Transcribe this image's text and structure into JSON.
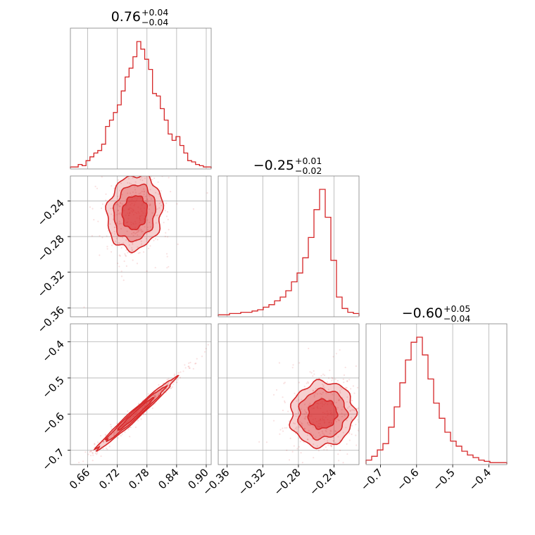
{
  "chart_data": {
    "type": "corner",
    "color": "#d62728",
    "grid": true,
    "titles": [
      {
        "value": "0.76",
        "plus": "+0.04",
        "minus": "−0.04"
      },
      {
        "value": "−0.25",
        "plus": "+0.01",
        "minus": "−0.02"
      },
      {
        "value": "−0.60",
        "plus": "+0.05",
        "minus": "−0.04"
      }
    ],
    "params": [
      {
        "range": [
          0.625,
          0.91
        ],
        "ticks": [
          0.66,
          0.72,
          0.78,
          0.84,
          0.9
        ],
        "tick_labels": [
          "0.66",
          "0.72",
          "0.78",
          "0.84",
          "0.90"
        ]
      },
      {
        "range": [
          -0.37,
          -0.212
        ],
        "ticks": [
          -0.36,
          -0.32,
          -0.28,
          -0.24
        ],
        "tick_labels": [
          "−0.36",
          "−0.32",
          "−0.28",
          "−0.24"
        ]
      },
      {
        "range": [
          -0.74,
          -0.35
        ],
        "ticks": [
          -0.7,
          -0.6,
          -0.5,
          -0.4
        ],
        "tick_labels": [
          "−0.7",
          "−0.6",
          "−0.5",
          "−0.4"
        ]
      }
    ],
    "hist": [
      [
        1,
        1,
        3,
        2,
        6,
        9,
        12,
        14,
        19,
        33,
        38,
        44,
        50,
        61,
        72,
        79,
        88,
        100,
        94,
        86,
        78,
        59,
        57,
        47,
        38,
        27,
        22,
        25,
        18,
        12,
        6,
        5,
        3,
        2,
        1,
        1
      ],
      [
        1,
        1,
        2,
        2,
        3,
        3,
        4,
        5,
        7,
        9,
        12,
        15,
        20,
        27,
        34,
        46,
        62,
        84,
        100,
        78,
        44,
        15,
        6,
        3,
        2
      ],
      [
        3,
        6,
        11,
        16,
        29,
        45,
        64,
        82,
        96,
        100,
        86,
        67,
        48,
        36,
        25,
        18,
        14,
        10,
        7,
        5,
        3,
        2,
        1,
        1,
        1
      ]
    ],
    "pairs": [
      {
        "row": 1,
        "col": 0,
        "mean": [
          0.755,
          -0.253
        ],
        "sd": [
          0.028,
          0.021
        ],
        "rho": 0.1,
        "n": 380
      },
      {
        "row": 2,
        "col": 0,
        "mean": [
          0.757,
          -0.6
        ],
        "sd": [
          0.04,
          0.05
        ],
        "rho": 0.985,
        "n": 380
      },
      {
        "row": 2,
        "col": 1,
        "mean": [
          -0.253,
          -0.6
        ],
        "sd": [
          0.018,
          0.045
        ],
        "rho": 0.05,
        "n": 380
      }
    ]
  }
}
